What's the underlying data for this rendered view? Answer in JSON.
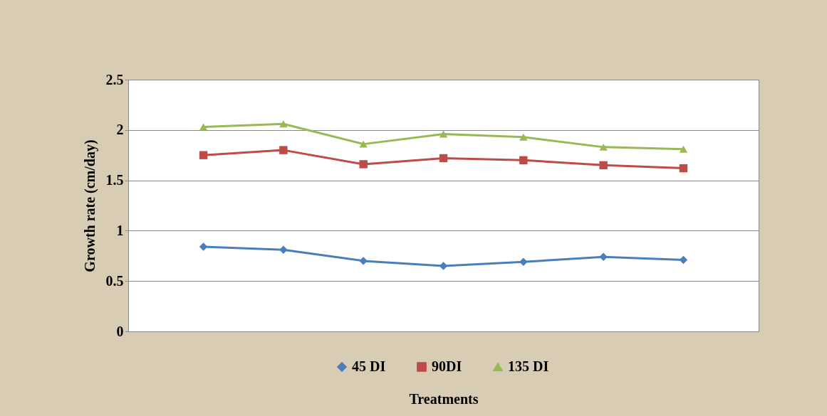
{
  "chart_data": {
    "type": "line",
    "ylabel": "Growth  rate (cm/day)",
    "xlabel": "Treatments",
    "categories": [
      null,
      null,
      null,
      null,
      null,
      null,
      null
    ],
    "series": [
      {
        "name": "45 DI",
        "color": "#4a7ebb",
        "marker": "diamond",
        "values": [
          0.84,
          0.81,
          0.7,
          0.65,
          0.69,
          0.74,
          0.71
        ]
      },
      {
        "name": "90DI",
        "color": "#be4b48",
        "marker": "square",
        "values": [
          1.75,
          1.8,
          1.66,
          1.72,
          1.7,
          1.65,
          1.62
        ]
      },
      {
        "name": "135 DI",
        "color": "#98b954",
        "marker": "triangle",
        "values": [
          2.03,
          2.06,
          1.86,
          1.96,
          1.93,
          1.83,
          1.81
        ]
      }
    ],
    "ylim": [
      0,
      2.5
    ],
    "yticks": [
      0,
      0.5,
      1,
      1.5,
      2,
      2.5
    ],
    "grid": "y",
    "legend": "bottom",
    "tick_labels": "y"
  }
}
